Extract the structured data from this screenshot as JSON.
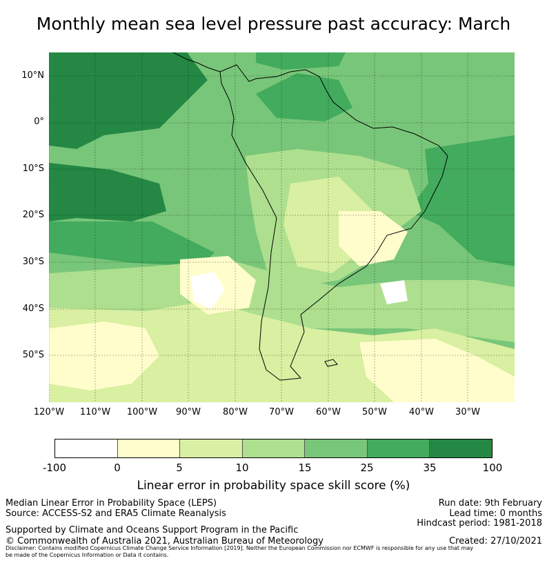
{
  "title": "Monthly mean sea level pressure past accuracy: March",
  "map": {
    "lat_labels": [
      "10°N",
      "0°",
      "10°S",
      "20°S",
      "30°S",
      "40°S",
      "50°S"
    ],
    "lon_labels": [
      "120°W",
      "110°W",
      "100°W",
      "90°W",
      "80°W",
      "70°W",
      "60°W",
      "50°W",
      "40°W",
      "30°W"
    ],
    "extent": {
      "lon_min": -120,
      "lon_max": -20,
      "lat_min": -60,
      "lat_max": 15
    },
    "region": "South America"
  },
  "colorbar": {
    "ticks": [
      "-100",
      "0",
      "5",
      "10",
      "15",
      "25",
      "35",
      "100"
    ],
    "colors": [
      "#ffffff",
      "#fffdcb",
      "#d9efa1",
      "#addf8e",
      "#78c679",
      "#42ab5d",
      "#248844"
    ],
    "label": "Linear error in probability space skill score (%)"
  },
  "footer": {
    "left1": "Median Linear Error in Probability Space (LEPS)",
    "left2": "Source: ACCESS-S2 and ERA5 Climate Reanalysis",
    "left3": "Supported by Climate and Oceans Support Program in the Pacific",
    "left4": "© Commonwealth of Australia 2021, Australian Bureau of Meteorology",
    "right1": "Run date: 9th February",
    "right2": "Lead time: 0 months",
    "right3": "Hindcast period: 1981-2018",
    "right4": "Created: 27/10/2021",
    "disclaimer1": "Disclaimer: Contains modified Copernicus Climate Change Service Information [2019]. Neither the European Commission nor ECMWF is responsible for any use that may",
    "disclaimer2": "be made of the Copernicus Information or Data it contains."
  }
}
